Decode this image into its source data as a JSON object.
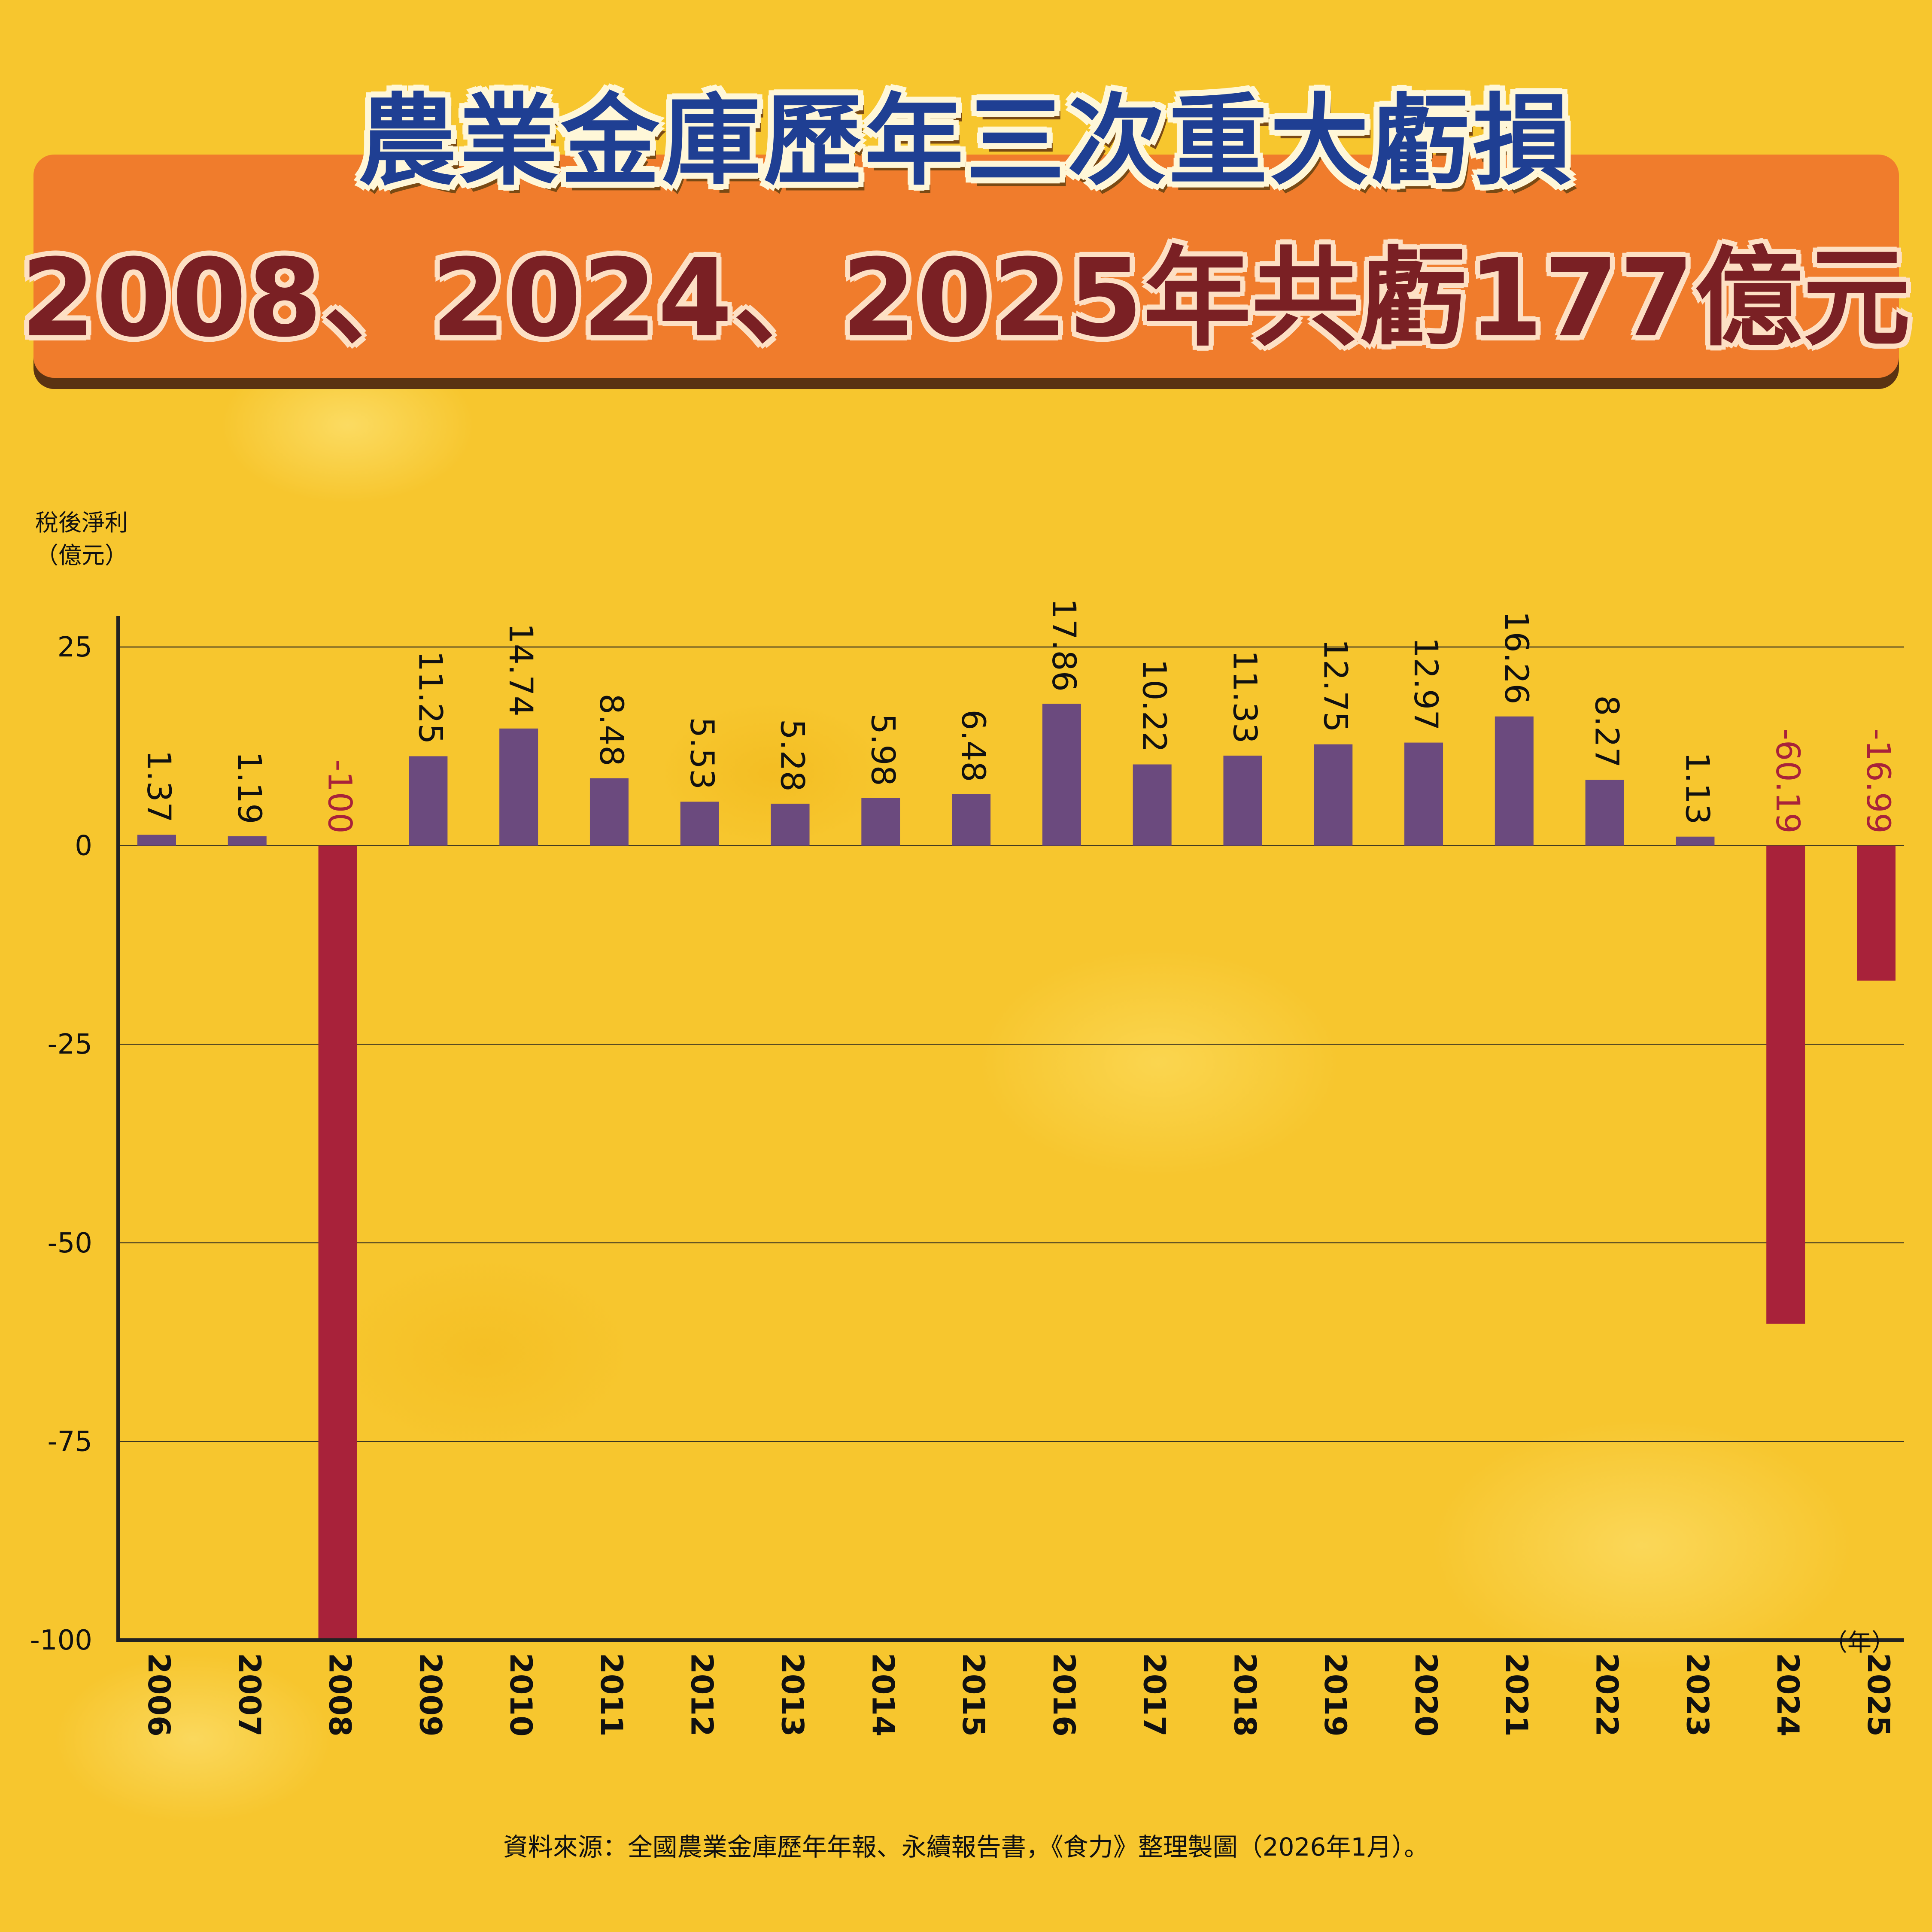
{
  "title_line1": "農業金庫歷年三次重大虧損",
  "title_line2": "2008、2024、2025年共虧177億元",
  "source": "資料來源：全國農業金庫歷年年報、永續報告書，《食力》整理製圖（2026年1月）。",
  "colors": {
    "positive": "#6b4a7e",
    "negative": "#a8223a",
    "negative_label": "#a8223a",
    "title_blue": "#1f3f93",
    "title_red": "#7a2024",
    "banner": "#f07c2c"
  },
  "chart_data": {
    "type": "bar",
    "ylabel_line1": "稅後淨利",
    "ylabel_line2": "（億元）",
    "xlabel": "（年）",
    "ylim": [
      -100,
      25
    ],
    "yticks": [
      25,
      0,
      -25,
      -50,
      -75,
      -100
    ],
    "grid": true,
    "categories": [
      "2006",
      "2007",
      "2008",
      "2009",
      "2010",
      "2011",
      "2012",
      "2013",
      "2014",
      "2015",
      "2016",
      "2017",
      "2018",
      "2019",
      "2020",
      "2021",
      "2022",
      "2023",
      "2024",
      "2025"
    ],
    "values": [
      1.37,
      1.19,
      -100,
      11.25,
      14.74,
      8.48,
      5.53,
      5.28,
      5.98,
      6.48,
      17.86,
      10.22,
      11.33,
      12.75,
      12.97,
      16.26,
      8.27,
      1.13,
      -60.19,
      -16.99
    ],
    "value_labels": [
      "1.37",
      "1.19",
      "-100",
      "11.25",
      "14.74",
      "8.48",
      "5.53",
      "5.28",
      "5.98",
      "6.48",
      "17.86",
      "10.22",
      "11.33",
      "12.75",
      "12.97",
      "16.26",
      "8.27",
      "1.13",
      "-60.19",
      "-16.99"
    ]
  }
}
